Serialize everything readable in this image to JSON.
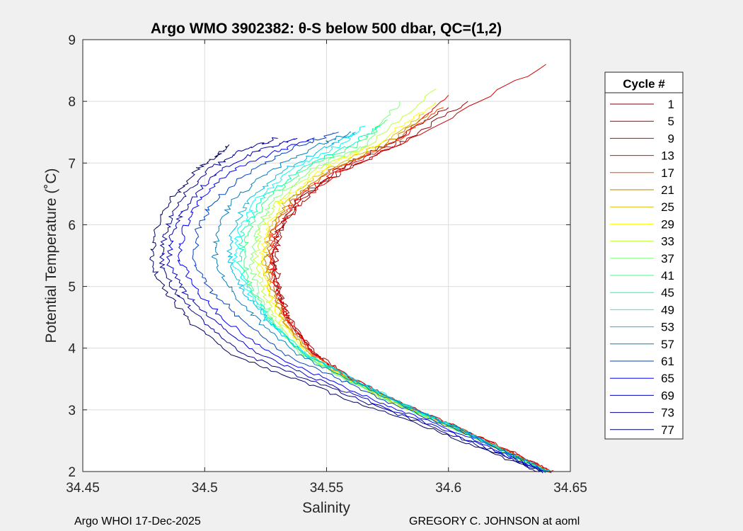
{
  "chart_data": {
    "type": "line",
    "title": "Argo WMO 3902382: θ-S below 500 dbar,  QC=(1,2)",
    "xlabel": "Salinity",
    "ylabel": "Potential Temperature (˚C)",
    "xlim": [
      34.45,
      34.65
    ],
    "ylim": [
      2,
      9
    ],
    "xticks": [
      "34.45",
      "34.5",
      "34.55",
      "34.6",
      "34.65"
    ],
    "yticks": [
      "2",
      "3",
      "4",
      "5",
      "6",
      "7",
      "8",
      "9"
    ],
    "grid": true,
    "legend": {
      "title": "Cycle #",
      "placement": "right, outside"
    },
    "series": [
      {
        "name": "1",
        "color": "#800000",
        "x": [
          34.641,
          34.625,
          34.604,
          34.58,
          34.56,
          34.545,
          34.535,
          34.53,
          34.528,
          34.53,
          34.538,
          34.555,
          34.575,
          34.6
        ],
        "y": [
          2.0,
          2.3,
          2.7,
          3.1,
          3.5,
          3.9,
          4.4,
          4.9,
          5.4,
          5.9,
          6.4,
          6.9,
          7.3,
          7.9
        ]
      },
      {
        "name": "5",
        "color": "#a00000",
        "x": [
          34.642,
          34.626,
          34.605,
          34.581,
          34.561,
          34.546,
          34.536,
          34.531,
          34.529,
          34.531,
          34.54,
          34.557,
          34.58,
          34.608
        ],
        "y": [
          2.0,
          2.3,
          2.7,
          3.1,
          3.5,
          3.9,
          4.4,
          4.9,
          5.4,
          5.9,
          6.4,
          6.9,
          7.3,
          8.0
        ]
      },
      {
        "name": "9",
        "color": "#d00000",
        "x": [
          34.643,
          34.627,
          34.605,
          34.581,
          34.561,
          34.545,
          34.535,
          34.53,
          34.528,
          34.53,
          34.539,
          34.558,
          34.585,
          34.64
        ],
        "y": [
          2.0,
          2.3,
          2.7,
          3.1,
          3.5,
          3.9,
          4.4,
          4.9,
          5.4,
          5.9,
          6.4,
          6.9,
          7.4,
          8.6
        ]
      },
      {
        "name": "13",
        "color": "#f00000",
        "x": [
          34.642,
          34.626,
          34.604,
          34.58,
          34.56,
          34.545,
          34.535,
          34.53,
          34.527,
          34.529,
          34.537,
          34.555,
          34.578,
          34.6
        ],
        "y": [
          2.0,
          2.3,
          2.7,
          3.1,
          3.5,
          3.9,
          4.4,
          4.9,
          5.4,
          5.9,
          6.4,
          6.9,
          7.3,
          8.1
        ]
      },
      {
        "name": "17",
        "color": "#ff4000",
        "x": [
          34.642,
          34.626,
          34.604,
          34.58,
          34.56,
          34.544,
          34.534,
          34.529,
          34.526,
          34.528,
          34.536,
          34.553,
          34.576,
          34.598
        ],
        "y": [
          2.0,
          2.3,
          2.7,
          3.1,
          3.5,
          3.9,
          4.4,
          4.9,
          5.4,
          5.9,
          6.4,
          6.9,
          7.3,
          7.9
        ]
      },
      {
        "name": "21",
        "color": "#c08000",
        "x": [
          34.641,
          34.625,
          34.603,
          34.579,
          34.559,
          34.543,
          34.533,
          34.528,
          34.525,
          34.527,
          34.535,
          34.552,
          34.574,
          34.592
        ],
        "y": [
          2.0,
          2.3,
          2.7,
          3.1,
          3.5,
          3.9,
          4.4,
          4.9,
          5.4,
          5.9,
          6.4,
          6.9,
          7.3,
          7.8
        ]
      },
      {
        "name": "25",
        "color": "#e0c000",
        "x": [
          34.641,
          34.625,
          34.603,
          34.579,
          34.559,
          34.543,
          34.533,
          34.527,
          34.524,
          34.526,
          34.534,
          34.55,
          34.572,
          34.59
        ],
        "y": [
          2.0,
          2.3,
          2.7,
          3.1,
          3.5,
          3.9,
          4.4,
          4.9,
          5.4,
          5.9,
          6.4,
          6.9,
          7.3,
          7.8
        ]
      },
      {
        "name": "29",
        "color": "#ffff00",
        "x": [
          34.64,
          34.624,
          34.602,
          34.578,
          34.558,
          34.542,
          34.532,
          34.526,
          34.523,
          34.525,
          34.532,
          34.548,
          34.57,
          34.595
        ],
        "y": [
          2.0,
          2.3,
          2.7,
          3.1,
          3.5,
          3.9,
          4.4,
          4.9,
          5.4,
          5.9,
          6.4,
          6.9,
          7.3,
          8.0
        ]
      },
      {
        "name": "33",
        "color": "#c0ff40",
        "x": [
          34.64,
          34.624,
          34.602,
          34.578,
          34.558,
          34.541,
          34.53,
          34.524,
          34.521,
          34.523,
          34.53,
          34.546,
          34.568,
          34.595
        ],
        "y": [
          2.0,
          2.3,
          2.7,
          3.1,
          3.5,
          3.9,
          4.4,
          4.9,
          5.4,
          5.9,
          6.4,
          6.9,
          7.3,
          8.2
        ]
      },
      {
        "name": "37",
        "color": "#80ff80",
        "x": [
          34.64,
          34.624,
          34.602,
          34.578,
          34.557,
          34.54,
          34.529,
          34.522,
          34.519,
          34.521,
          34.528,
          34.544,
          34.566,
          34.58
        ],
        "y": [
          2.0,
          2.3,
          2.7,
          3.1,
          3.5,
          3.9,
          4.4,
          4.9,
          5.4,
          5.9,
          6.4,
          6.9,
          7.3,
          8.0
        ]
      },
      {
        "name": "41",
        "color": "#40ff80",
        "x": [
          34.64,
          34.624,
          34.603,
          34.579,
          34.558,
          34.54,
          34.528,
          34.52,
          34.516,
          34.518,
          34.525,
          34.541,
          34.563,
          34.575
        ],
        "y": [
          2.0,
          2.3,
          2.7,
          3.1,
          3.5,
          3.9,
          4.4,
          4.9,
          5.4,
          5.9,
          6.4,
          6.9,
          7.3,
          7.7
        ]
      },
      {
        "name": "45",
        "color": "#00ffc0",
        "x": [
          34.64,
          34.624,
          34.603,
          34.58,
          34.56,
          34.541,
          34.528,
          34.519,
          34.514,
          34.516,
          34.523,
          34.539,
          34.56,
          34.572
        ],
        "y": [
          2.0,
          2.3,
          2.7,
          3.1,
          3.5,
          3.9,
          4.4,
          4.9,
          5.4,
          5.9,
          6.4,
          6.9,
          7.3,
          7.6
        ]
      },
      {
        "name": "49",
        "color": "#00ffff",
        "x": [
          34.641,
          34.625,
          34.604,
          34.581,
          34.561,
          34.542,
          34.528,
          34.518,
          34.512,
          34.514,
          34.521,
          34.536,
          34.556,
          34.566
        ],
        "y": [
          2.0,
          2.3,
          2.7,
          3.1,
          3.5,
          3.9,
          4.4,
          4.9,
          5.4,
          5.9,
          6.4,
          6.9,
          7.3,
          7.6
        ]
      },
      {
        "name": "53",
        "color": "#00c0e0",
        "x": [
          34.641,
          34.625,
          34.604,
          34.581,
          34.561,
          34.541,
          34.527,
          34.516,
          34.51,
          34.511,
          34.518,
          34.533,
          34.552,
          34.562
        ],
        "y": [
          2.0,
          2.3,
          2.7,
          3.1,
          3.5,
          3.9,
          4.4,
          4.9,
          5.4,
          5.9,
          6.4,
          6.9,
          7.3,
          7.5
        ]
      },
      {
        "name": "57",
        "color": "#0080c0",
        "x": [
          34.641,
          34.625,
          34.604,
          34.58,
          34.559,
          34.538,
          34.523,
          34.511,
          34.504,
          34.505,
          34.512,
          34.528,
          34.547,
          34.56
        ],
        "y": [
          2.0,
          2.3,
          2.7,
          3.1,
          3.5,
          3.9,
          4.4,
          4.9,
          5.4,
          5.9,
          6.4,
          6.9,
          7.3,
          7.5
        ]
      },
      {
        "name": "61",
        "color": "#0040c0",
        "x": [
          34.64,
          34.624,
          34.602,
          34.577,
          34.555,
          34.533,
          34.517,
          34.503,
          34.496,
          34.497,
          34.504,
          34.52,
          34.54,
          34.555
        ],
        "y": [
          2.0,
          2.3,
          2.7,
          3.1,
          3.5,
          3.9,
          4.4,
          4.9,
          5.4,
          5.9,
          6.4,
          6.9,
          7.3,
          7.5
        ]
      },
      {
        "name": "65",
        "color": "#0000ff",
        "x": [
          34.639,
          34.622,
          34.599,
          34.573,
          34.55,
          34.527,
          34.51,
          34.497,
          34.49,
          34.491,
          34.498,
          34.512,
          34.53,
          34.545
        ],
        "y": [
          2.0,
          2.3,
          2.7,
          3.1,
          3.5,
          3.9,
          4.4,
          4.9,
          5.4,
          5.9,
          6.4,
          6.9,
          7.2,
          7.4
        ]
      },
      {
        "name": "69",
        "color": "#0000c0",
        "x": [
          34.639,
          34.621,
          34.597,
          34.57,
          34.546,
          34.522,
          34.505,
          34.492,
          34.485,
          34.487,
          34.494,
          34.507,
          34.523,
          34.538
        ],
        "y": [
          2.0,
          2.3,
          2.7,
          3.1,
          3.5,
          3.9,
          4.4,
          4.9,
          5.4,
          5.9,
          6.4,
          6.9,
          7.2,
          7.4
        ]
      },
      {
        "name": "73",
        "color": "#000090",
        "x": [
          34.638,
          34.62,
          34.595,
          34.567,
          34.542,
          34.516,
          34.5,
          34.488,
          34.482,
          34.484,
          34.49,
          34.502,
          34.515,
          34.53
        ],
        "y": [
          2.0,
          2.3,
          2.7,
          3.1,
          3.5,
          3.9,
          4.4,
          4.9,
          5.4,
          5.9,
          6.4,
          6.9,
          7.2,
          7.4
        ]
      },
      {
        "name": "77",
        "color": "#000060",
        "x": [
          34.637,
          34.618,
          34.592,
          34.563,
          34.537,
          34.511,
          34.495,
          34.484,
          34.478,
          34.48,
          34.486,
          34.497,
          34.505,
          34.51
        ],
        "y": [
          2.0,
          2.3,
          2.7,
          3.1,
          3.5,
          3.9,
          4.4,
          4.9,
          5.4,
          5.9,
          6.4,
          6.9,
          7.1,
          7.3
        ]
      }
    ]
  },
  "footer": {
    "left": "Argo WHOI 17-Dec-2025",
    "right": "GREGORY C. JOHNSON at aoml"
  }
}
